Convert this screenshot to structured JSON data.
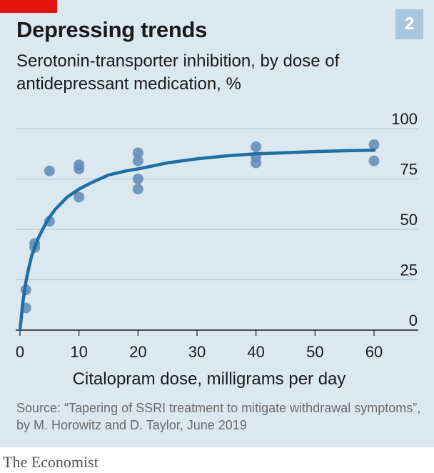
{
  "header": {
    "title": "Depressing trends",
    "badge": "2",
    "subtitle": "Serotonin-transporter inhibition, by dose of antidepressant medication, %"
  },
  "footer": {
    "source": "Source: “Tapering of SSRI treatment to mitigate withdrawal symptoms”, by M. Horowitz and D. Taylor, June 2019",
    "brand": "The Economist"
  },
  "colors": {
    "panel": "#dbe8f0",
    "accent": "#e3120b",
    "line": "#1f6fa3",
    "points": "#5f89b7",
    "grid": "#b9cad6"
  },
  "chart_data": {
    "type": "scatter",
    "title": "Depressing trends",
    "subtitle": "Serotonin-transporter inhibition, by dose of antidepressant medication, %",
    "xlabel": "Citalopram dose, milligrams per day",
    "ylabel": "",
    "xlim": [
      0,
      60
    ],
    "ylim": [
      0,
      100
    ],
    "x_ticks": [
      "0",
      "10",
      "20",
      "30",
      "40",
      "50",
      "60"
    ],
    "x_tick_values": [
      0,
      10,
      20,
      30,
      40,
      50,
      60
    ],
    "y_ticks": [
      "0",
      "25",
      "50",
      "75",
      "100"
    ],
    "y_tick_values": [
      0,
      25,
      50,
      75,
      100
    ],
    "grid": "horizontal",
    "points": [
      {
        "x": 1,
        "y": 20
      },
      {
        "x": 1,
        "y": 11
      },
      {
        "x": 2.5,
        "y": 43
      },
      {
        "x": 2.5,
        "y": 41
      },
      {
        "x": 5,
        "y": 79
      },
      {
        "x": 5,
        "y": 54
      },
      {
        "x": 10,
        "y": 82
      },
      {
        "x": 10,
        "y": 80
      },
      {
        "x": 10,
        "y": 66
      },
      {
        "x": 20,
        "y": 88
      },
      {
        "x": 20,
        "y": 84
      },
      {
        "x": 20,
        "y": 75
      },
      {
        "x": 20,
        "y": 70
      },
      {
        "x": 40,
        "y": 91
      },
      {
        "x": 40,
        "y": 86
      },
      {
        "x": 40,
        "y": 83
      },
      {
        "x": 60,
        "y": 92
      },
      {
        "x": 60,
        "y": 84
      }
    ],
    "fit_line": {
      "x": [
        0,
        0.5,
        1,
        1.5,
        2,
        3,
        4,
        5,
        6,
        7,
        8,
        10,
        12,
        15,
        18,
        20,
        25,
        30,
        35,
        40,
        45,
        50,
        55,
        60
      ],
      "y": [
        0,
        14,
        24,
        31,
        37,
        45,
        51,
        56,
        60,
        63,
        66,
        70,
        73,
        77,
        79,
        80,
        83,
        85,
        86.5,
        87.5,
        88,
        88.6,
        89,
        89.3
      ]
    }
  }
}
